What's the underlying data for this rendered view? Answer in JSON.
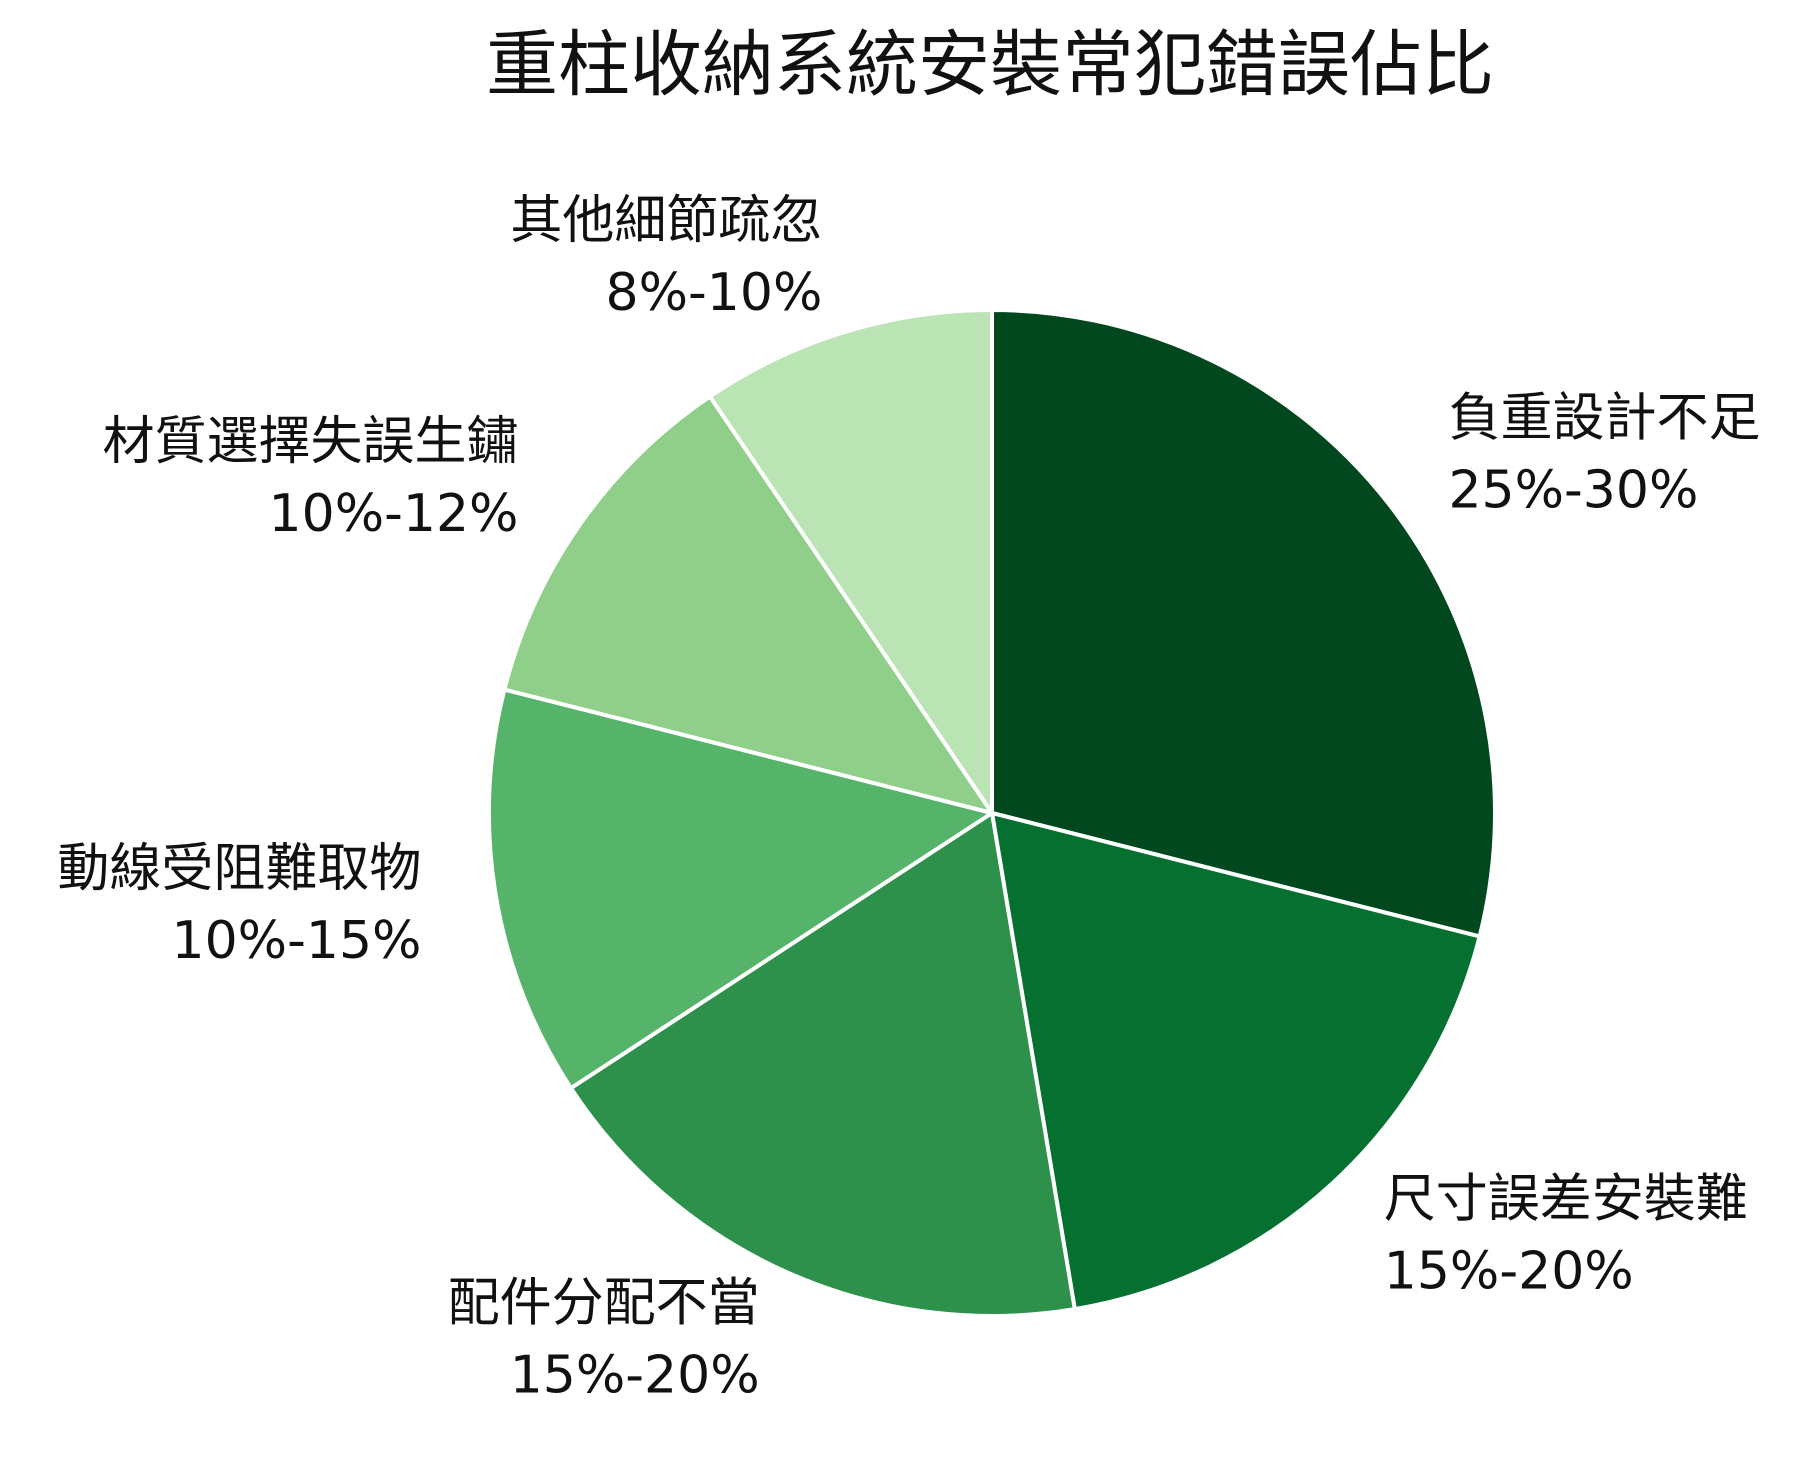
{
  "chart_data": {
    "type": "pie",
    "title": "重柱收納系統安裝常犯錯誤佔比",
    "categories": [
      "負重設計不足",
      "尺寸誤差安裝難",
      "配件分配不當",
      "動線受阻難取物",
      "材質選擇失誤生鏽",
      "其他細節疏忽"
    ],
    "values": [
      27.5,
      17.5,
      17.5,
      12.5,
      11,
      9
    ],
    "value_labels": [
      "25%-30%",
      "15%-20%",
      "15%-20%",
      "10%-15%",
      "10%-12%",
      "8%-10%"
    ],
    "colors": [
      "#01481f",
      "#067030",
      "#2d914b",
      "#55b469",
      "#8fcf8a",
      "#bbe4b4"
    ]
  }
}
